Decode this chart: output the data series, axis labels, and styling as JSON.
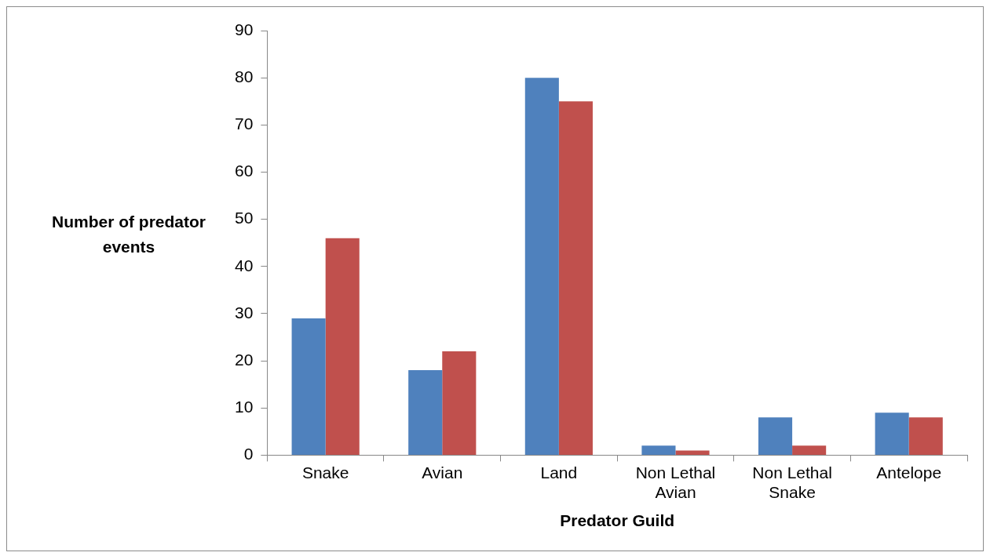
{
  "chart_data": {
    "type": "bar",
    "xlabel": "Predator Guild",
    "ylabel": "Number of predator events",
    "categories": [
      "Snake",
      "Avian",
      "Land",
      "Non Lethal Avian",
      "Non Lethal Snake",
      "Antelope"
    ],
    "series": [
      {
        "color": "#4f81bd",
        "values": [
          29,
          18,
          80,
          2,
          8,
          9
        ]
      },
      {
        "color": "#c0504d",
        "values": [
          46,
          22,
          75,
          1,
          2,
          8
        ]
      }
    ],
    "ylim": [
      0,
      90
    ],
    "yticks": [
      0,
      10,
      20,
      30,
      40,
      50,
      60,
      70,
      80,
      90
    ],
    "grid": false,
    "legend": false
  }
}
